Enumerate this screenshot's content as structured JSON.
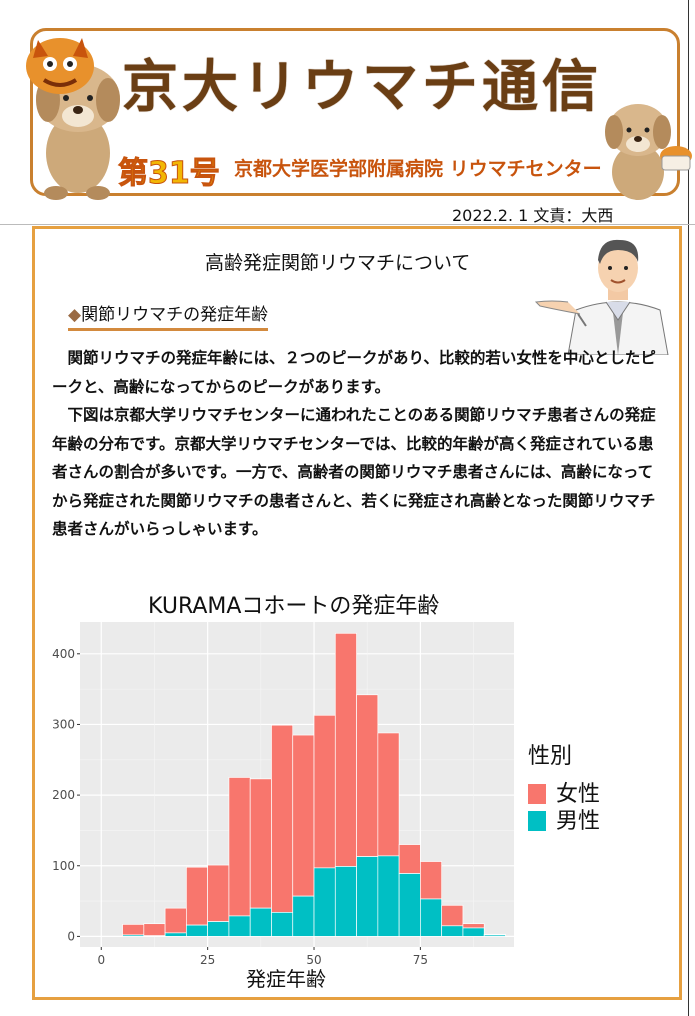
{
  "header": {
    "title": "京大リウマチ通信",
    "issue": "第31号",
    "hospital": "京都大学医学部附属病院 リウマチセンター"
  },
  "date_line": "2022.2. 1 文責：大西",
  "article": {
    "title": "高齢発症関節リウマチについて",
    "section_marker": "◆",
    "section_heading": "関節リウマチの発症年齢",
    "paragraphs": [
      "　関節リウマチの発症年齢には、２つのピークがあり、比較的若い女性を中心としたピークと、高齢になってからのピークがあります。",
      "　下図は京都大学リウマチセンターに通われたことのある関節リウマチ患者さんの発症年齢の分布です。京都大学リウマチセンターでは、比較的年齢が高く発症されている患者さんの割合が多いです。一方で、高齢者の関節リウマチ患者さんには、高齢になってから発症された関節リウマチの患者さんと、若くに発症され高齢となった関節リウマチ患者さんがいらっしゃいます。"
    ]
  },
  "chart_data": {
    "type": "bar",
    "stacked": true,
    "title": "KURAMAコホートの発症年齢",
    "xlabel": "発症年齢",
    "ylabel": "",
    "xlim": [
      -5,
      97
    ],
    "ylim": [
      -15,
      445
    ],
    "xticks": [
      0,
      25,
      50,
      75
    ],
    "yticks": [
      0,
      100,
      200,
      300,
      400
    ],
    "bin_width": 5,
    "bin_starts": [
      0,
      5,
      10,
      15,
      20,
      25,
      30,
      35,
      40,
      45,
      50,
      55,
      60,
      65,
      70,
      75,
      80,
      85,
      90
    ],
    "legend_title": "性別",
    "legend_position": "right",
    "background": "#ebebeb",
    "series": [
      {
        "name": "男性",
        "color": "#00bfc4",
        "values": [
          0,
          2,
          1,
          5,
          16,
          21,
          29,
          40,
          34,
          57,
          97,
          99,
          113,
          114,
          89,
          53,
          15,
          12,
          2
        ]
      },
      {
        "name": "女性",
        "color": "#f8766d",
        "values": [
          0,
          15,
          17,
          35,
          82,
          80,
          196,
          183,
          265,
          228,
          216,
          330,
          229,
          174,
          41,
          53,
          29,
          6,
          1
        ]
      }
    ]
  }
}
